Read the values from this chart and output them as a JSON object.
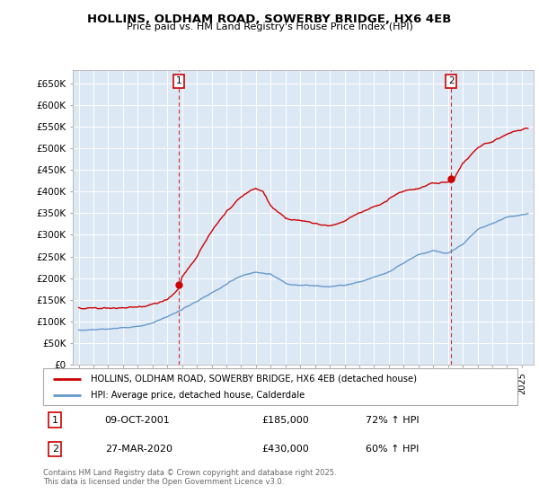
{
  "title": "HOLLINS, OLDHAM ROAD, SOWERBY BRIDGE, HX6 4EB",
  "subtitle": "Price paid vs. HM Land Registry's House Price Index (HPI)",
  "ylim": [
    0,
    680000
  ],
  "yticks": [
    0,
    50000,
    100000,
    150000,
    200000,
    250000,
    300000,
    350000,
    400000,
    450000,
    500000,
    550000,
    600000,
    650000
  ],
  "ytick_labels": [
    "£0",
    "£50K",
    "£100K",
    "£150K",
    "£200K",
    "£250K",
    "£300K",
    "£350K",
    "£400K",
    "£450K",
    "£500K",
    "£550K",
    "£600K",
    "£650K"
  ],
  "sale1_date": 2001.77,
  "sale1_price": 185000,
  "sale1_label": "1",
  "sale2_date": 2020.23,
  "sale2_price": 430000,
  "sale2_label": "2",
  "legend_red": "HOLLINS, OLDHAM ROAD, SOWERBY BRIDGE, HX6 4EB (detached house)",
  "legend_blue": "HPI: Average price, detached house, Calderdale",
  "annotation1_num": "1",
  "annotation1_date": "09-OCT-2001",
  "annotation1_price": "£185,000",
  "annotation1_hpi": "72% ↑ HPI",
  "annotation2_num": "2",
  "annotation2_date": "27-MAR-2020",
  "annotation2_price": "£430,000",
  "annotation2_hpi": "60% ↑ HPI",
  "footer": "Contains HM Land Registry data © Crown copyright and database right 2025.\nThis data is licensed under the Open Government Licence v3.0.",
  "bg_color": "#ffffff",
  "plot_bg_color": "#dde8f5",
  "grid_color": "#ffffff",
  "red_color": "#cc0000",
  "blue_color": "#6699cc",
  "xlim_left": 1994.6,
  "xlim_right": 2025.8
}
